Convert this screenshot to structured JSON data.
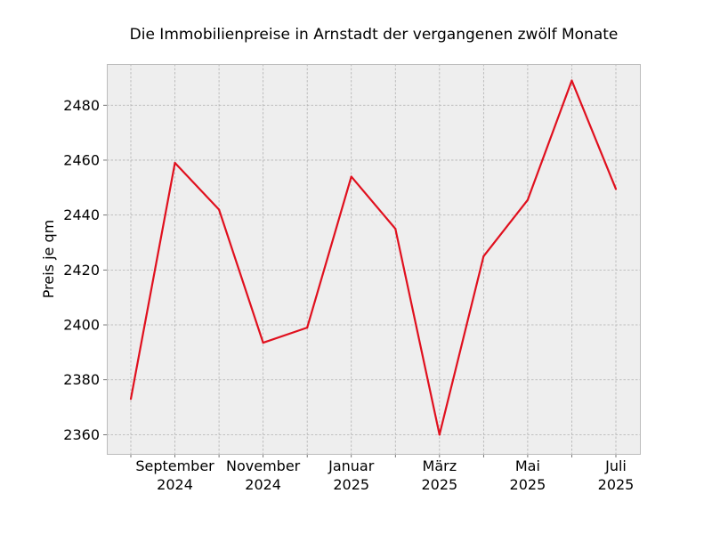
{
  "chart_data": {
    "type": "line",
    "title": "Die Immobilienpreise in Arnstadt der vergangenen zwölf Monate",
    "xlabel": "",
    "ylabel": "Preis je qm",
    "x": [
      "2024-08",
      "2024-09",
      "2024-10",
      "2024-11",
      "2024-12",
      "2025-01",
      "2025-02",
      "2025-03",
      "2025-04",
      "2025-05",
      "2025-06",
      "2025-07"
    ],
    "x_tick_labels": [
      {
        "x": "2024-09",
        "line1": "September",
        "line2": "2024"
      },
      {
        "x": "2024-11",
        "line1": "November",
        "line2": "2024"
      },
      {
        "x": "2025-01",
        "line1": "Januar",
        "line2": "2025"
      },
      {
        "x": "2025-03",
        "line1": "März",
        "line2": "2025"
      },
      {
        "x": "2025-05",
        "line1": "Mai",
        "line2": "2025"
      },
      {
        "x": "2025-07",
        "line1": "Juli",
        "line2": "2025"
      }
    ],
    "y_ticks": [
      2360,
      2380,
      2400,
      2420,
      2440,
      2460,
      2480
    ],
    "ylim": [
      2353,
      2495
    ],
    "grid": true,
    "series": [
      {
        "color": "#e0101e",
        "values": [
          2373,
          2459,
          2442,
          2393.5,
          2399,
          2454,
          2435,
          2360,
          2425,
          2445.5,
          2489,
          2449.5
        ]
      }
    ]
  },
  "colors": {
    "plot_background": "#eeeeee",
    "plot_border": "#bcbcbc",
    "line": "#e0101e"
  }
}
